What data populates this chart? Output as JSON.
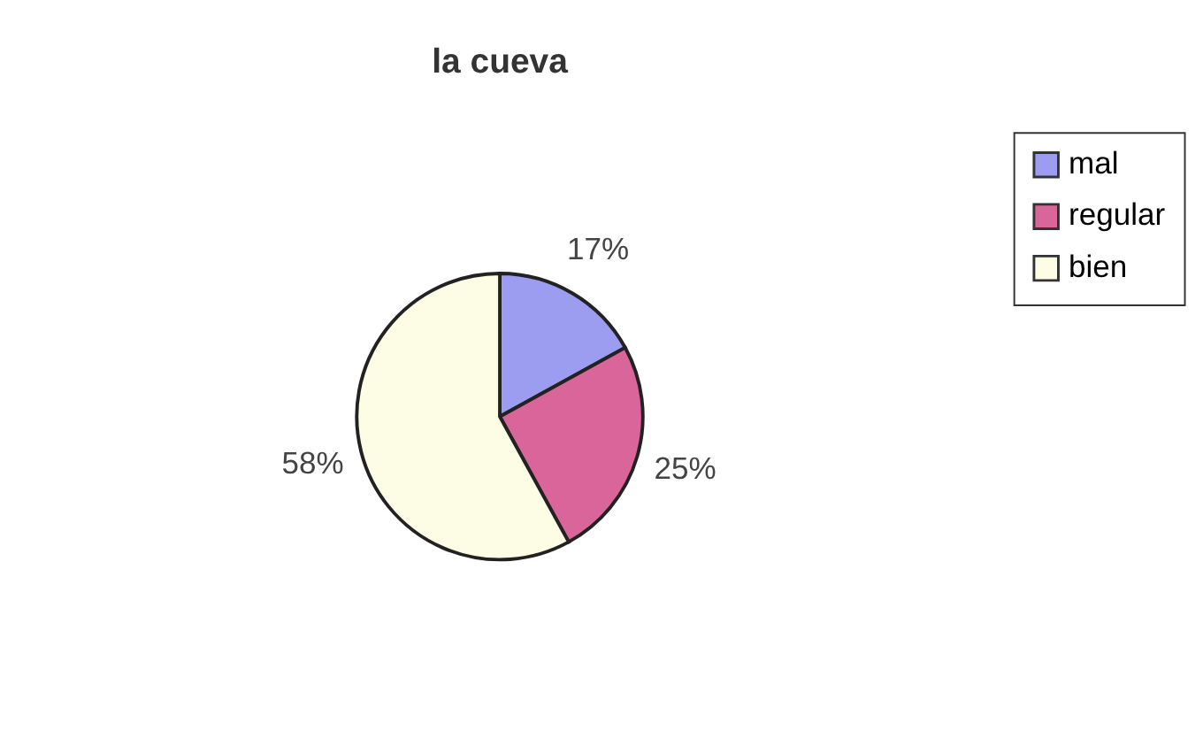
{
  "chart_data": {
    "type": "pie",
    "title": "la cueva",
    "categories": [
      "mal",
      "regular",
      "bien"
    ],
    "values": [
      17,
      25,
      58
    ],
    "colors": [
      "#9c9cf0",
      "#d9659a",
      "#fdfde6"
    ],
    "value_labels": [
      "17%",
      "25%",
      "58%"
    ],
    "legend": "right"
  }
}
